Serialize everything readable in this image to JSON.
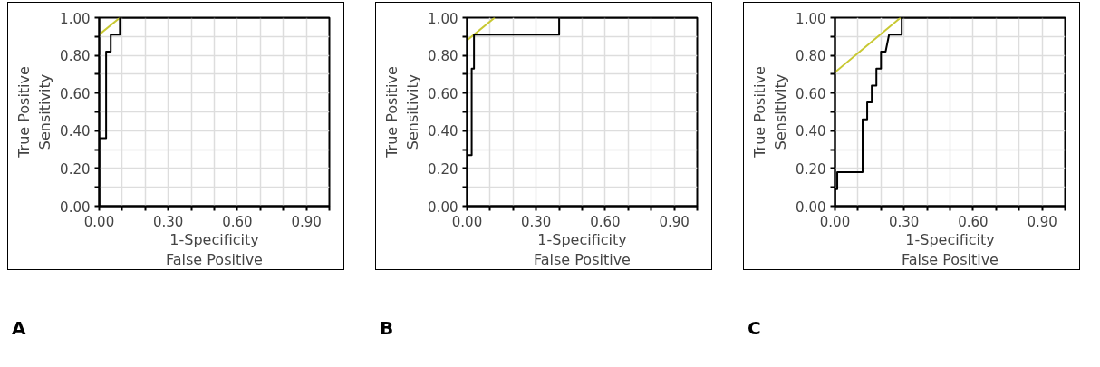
{
  "chart_data": [
    {
      "type": "line",
      "xlabel": "1-Specificity\nFalse Positive",
      "ylabel": "True Positive\nSensitivity",
      "annotations": [
        "A"
      ],
      "xlim": [
        0,
        1
      ],
      "ylim": [
        0,
        1
      ],
      "xticks": [
        {
          "value": 0,
          "label": "0.00"
        },
        {
          "value": 0.1,
          "label": null
        },
        {
          "value": 0.2,
          "label": null
        },
        {
          "value": 0.3,
          "label": "0.30"
        },
        {
          "value": 0.4,
          "label": null
        },
        {
          "value": 0.5,
          "label": null
        },
        {
          "value": 0.6,
          "label": "0.60"
        },
        {
          "value": 0.7,
          "label": null
        },
        {
          "value": 0.8,
          "label": null
        },
        {
          "value": 0.9,
          "label": "0.90"
        },
        {
          "value": 1,
          "label": null
        }
      ],
      "yticks": [
        {
          "value": 0,
          "label": "0.00"
        },
        {
          "value": 0.1,
          "label": null
        },
        {
          "value": 0.2,
          "label": "0.20"
        },
        {
          "value": 0.3,
          "label": null
        },
        {
          "value": 0.4,
          "label": "0.40"
        },
        {
          "value": 0.5,
          "label": null
        },
        {
          "value": 0.6,
          "label": "0.60"
        },
        {
          "value": 0.7,
          "label": null
        },
        {
          "value": 0.8,
          "label": "0.80"
        },
        {
          "value": 0.9,
          "label": null
        },
        {
          "value": 1,
          "label": "1.00"
        }
      ],
      "grid": true,
      "series": [
        {
          "color": "#c8c832",
          "x": [
            0,
            0.09
          ],
          "values": [
            0.91,
            1
          ]
        },
        {
          "color": "#000000",
          "x": [
            0,
            0,
            0.03,
            0.03,
            0.05,
            0.05,
            0.09,
            0.09,
            1
          ],
          "values": [
            0,
            0.36,
            0.36,
            0.82,
            0.82,
            0.91,
            0.91,
            1,
            1
          ]
        }
      ]
    },
    {
      "type": "line",
      "xlabel": "1-Specificity\nFalse Positive",
      "ylabel": "True Positive\nSensitivity",
      "annotations": [
        "B"
      ],
      "xlim": [
        0,
        1
      ],
      "ylim": [
        0,
        1
      ],
      "xticks": [
        {
          "value": 0,
          "label": "0.00"
        },
        {
          "value": 0.1,
          "label": null
        },
        {
          "value": 0.2,
          "label": null
        },
        {
          "value": 0.3,
          "label": "0.30"
        },
        {
          "value": 0.4,
          "label": null
        },
        {
          "value": 0.5,
          "label": null
        },
        {
          "value": 0.6,
          "label": "0.60"
        },
        {
          "value": 0.7,
          "label": null
        },
        {
          "value": 0.8,
          "label": null
        },
        {
          "value": 0.9,
          "label": "0.90"
        },
        {
          "value": 1,
          "label": null
        }
      ],
      "yticks": [
        {
          "value": 0,
          "label": "0.00"
        },
        {
          "value": 0.1,
          "label": null
        },
        {
          "value": 0.2,
          "label": "0.20"
        },
        {
          "value": 0.3,
          "label": null
        },
        {
          "value": 0.4,
          "label": "0.40"
        },
        {
          "value": 0.5,
          "label": null
        },
        {
          "value": 0.6,
          "label": "0.60"
        },
        {
          "value": 0.7,
          "label": null
        },
        {
          "value": 0.8,
          "label": "0.80"
        },
        {
          "value": 0.9,
          "label": null
        },
        {
          "value": 1,
          "label": "1.00"
        }
      ],
      "grid": true,
      "series": [
        {
          "color": "#c8c832",
          "x": [
            0,
            0.12
          ],
          "values": [
            0.88,
            1
          ]
        },
        {
          "color": "#000000",
          "x": [
            0,
            0,
            0.02,
            0.02,
            0.03,
            0.03,
            0.4,
            0.4,
            1
          ],
          "values": [
            0,
            0.27,
            0.27,
            0.73,
            0.73,
            0.91,
            0.91,
            1,
            1
          ]
        }
      ]
    },
    {
      "type": "line",
      "xlabel": "1-Specificity\nFalse Positive",
      "ylabel": "True Positive\nSensitivity",
      "annotations": [
        "C"
      ],
      "xlim": [
        0,
        1
      ],
      "ylim": [
        0,
        1
      ],
      "xticks": [
        {
          "value": 0,
          "label": "0.00"
        },
        {
          "value": 0.1,
          "label": null
        },
        {
          "value": 0.2,
          "label": null
        },
        {
          "value": 0.3,
          "label": "0.30"
        },
        {
          "value": 0.4,
          "label": null
        },
        {
          "value": 0.5,
          "label": null
        },
        {
          "value": 0.6,
          "label": "0.60"
        },
        {
          "value": 0.7,
          "label": null
        },
        {
          "value": 0.8,
          "label": null
        },
        {
          "value": 0.9,
          "label": "0.90"
        },
        {
          "value": 1,
          "label": null
        }
      ],
      "yticks": [
        {
          "value": 0,
          "label": "0.00"
        },
        {
          "value": 0.1,
          "label": null
        },
        {
          "value": 0.2,
          "label": "0.20"
        },
        {
          "value": 0.3,
          "label": null
        },
        {
          "value": 0.4,
          "label": "0.40"
        },
        {
          "value": 0.5,
          "label": null
        },
        {
          "value": 0.6,
          "label": "0.60"
        },
        {
          "value": 0.7,
          "label": null
        },
        {
          "value": 0.8,
          "label": "0.80"
        },
        {
          "value": 0.9,
          "label": null
        },
        {
          "value": 1,
          "label": "1.00"
        }
      ],
      "grid": true,
      "series": [
        {
          "color": "#c8c832",
          "x": [
            0,
            0.285
          ],
          "values": [
            0.71,
            1
          ]
        },
        {
          "color": "#000000",
          "x": [
            0,
            0,
            0.01,
            0.01,
            0.12,
            0.12,
            0.14,
            0.14,
            0.16,
            0.16,
            0.18,
            0.18,
            0.2,
            0.2,
            0.22,
            0.235,
            0.29,
            0.29,
            1
          ],
          "values": [
            0,
            0.09,
            0.09,
            0.18,
            0.18,
            0.46,
            0.46,
            0.55,
            0.55,
            0.64,
            0.64,
            0.73,
            0.73,
            0.82,
            0.82,
            0.91,
            0.91,
            1,
            1
          ]
        }
      ]
    }
  ]
}
